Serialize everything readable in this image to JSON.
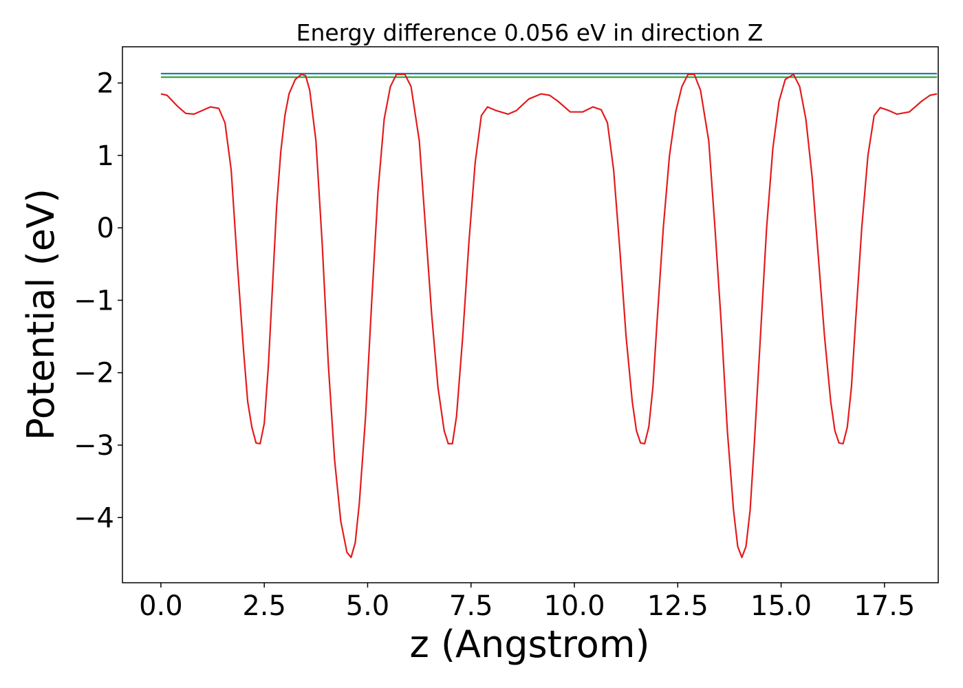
{
  "chart_data": {
    "type": "line",
    "title": "Energy difference 0.056 eV in direction Z",
    "xlabel": "z (Angstrom)",
    "ylabel": "Potential (eV)",
    "xlim": [
      -0.93,
      18.8
    ],
    "ylim": [
      -4.9,
      2.5
    ],
    "xticks": [
      0.0,
      2.5,
      5.0,
      7.5,
      10.0,
      12.5,
      15.0,
      17.5
    ],
    "xtick_labels": [
      "0.0",
      "2.5",
      "5.0",
      "7.5",
      "10.0",
      "12.5",
      "15.0",
      "17.5"
    ],
    "yticks": [
      2,
      1,
      0,
      -1,
      -2,
      -3,
      -4
    ],
    "ytick_labels": [
      "2",
      "1",
      "0",
      "−1",
      "−2",
      "−3",
      "−4"
    ],
    "grid": false,
    "series": [
      {
        "color": "#1f77b4",
        "x": [
          0.0,
          18.77
        ],
        "y": [
          2.13,
          2.13
        ]
      },
      {
        "color": "#2ca02c",
        "x": [
          0.0,
          18.77
        ],
        "y": [
          2.08,
          2.08
        ]
      },
      {
        "color": "#e31a1c",
        "x": [
          0.0,
          0.15,
          0.4,
          0.6,
          0.8,
          1.0,
          1.2,
          1.4,
          1.55,
          1.7,
          1.85,
          2.0,
          2.1,
          2.2,
          2.3,
          2.4,
          2.5,
          2.6,
          2.7,
          2.8,
          2.9,
          3.0,
          3.1,
          3.25,
          3.4,
          3.5,
          3.6,
          3.75,
          3.9,
          4.05,
          4.2,
          4.35,
          4.5,
          4.6,
          4.7,
          4.8,
          4.95,
          5.1,
          5.25,
          5.4,
          5.55,
          5.7,
          5.9,
          6.05,
          6.25,
          6.4,
          6.55,
          6.7,
          6.85,
          6.95,
          7.05,
          7.15,
          7.3,
          7.45,
          7.6,
          7.75,
          7.9,
          8.1,
          8.4,
          8.6,
          8.9,
          9.2,
          9.4,
          9.6,
          9.9,
          10.2,
          10.45,
          10.65,
          10.8,
          10.95,
          11.1,
          11.25,
          11.4,
          11.5,
          11.6,
          11.7,
          11.8,
          11.9,
          12.0,
          12.15,
          12.3,
          12.45,
          12.6,
          12.75,
          12.9,
          13.05,
          13.25,
          13.4,
          13.55,
          13.7,
          13.85,
          13.95,
          14.05,
          14.15,
          14.25,
          14.35,
          14.5,
          14.65,
          14.8,
          14.95,
          15.1,
          15.3,
          15.45,
          15.6,
          15.75,
          15.9,
          16.05,
          16.2,
          16.3,
          16.4,
          16.5,
          16.6,
          16.7,
          16.8,
          16.95,
          17.1,
          17.25,
          17.4,
          17.6,
          17.8,
          18.1,
          18.4,
          18.6,
          18.77
        ],
        "y": [
          1.85,
          1.83,
          1.68,
          1.58,
          1.57,
          1.62,
          1.67,
          1.65,
          1.45,
          0.8,
          -0.5,
          -1.7,
          -2.4,
          -2.75,
          -2.97,
          -2.98,
          -2.7,
          -1.9,
          -0.8,
          0.3,
          1.05,
          1.55,
          1.85,
          2.05,
          2.12,
          2.1,
          1.9,
          1.2,
          -0.2,
          -1.9,
          -3.2,
          -4.05,
          -4.48,
          -4.55,
          -4.35,
          -3.8,
          -2.6,
          -1.0,
          0.5,
          1.5,
          1.95,
          2.12,
          2.12,
          1.95,
          1.2,
          0.0,
          -1.2,
          -2.2,
          -2.8,
          -2.98,
          -2.98,
          -2.6,
          -1.5,
          -0.2,
          0.9,
          1.55,
          1.67,
          1.62,
          1.57,
          1.62,
          1.78,
          1.85,
          1.83,
          1.75,
          1.6,
          1.6,
          1.67,
          1.63,
          1.45,
          0.8,
          -0.3,
          -1.5,
          -2.4,
          -2.8,
          -2.97,
          -2.98,
          -2.75,
          -2.2,
          -1.3,
          0.0,
          1.0,
          1.6,
          1.95,
          2.12,
          2.12,
          1.9,
          1.2,
          0.0,
          -1.3,
          -2.8,
          -3.9,
          -4.4,
          -4.55,
          -4.4,
          -3.9,
          -3.0,
          -1.5,
          0.0,
          1.1,
          1.75,
          2.05,
          2.12,
          1.95,
          1.5,
          0.7,
          -0.4,
          -1.5,
          -2.4,
          -2.8,
          -2.97,
          -2.98,
          -2.75,
          -2.2,
          -1.3,
          0.0,
          1.0,
          1.55,
          1.66,
          1.62,
          1.57,
          1.6,
          1.75,
          1.83,
          1.85
        ]
      }
    ]
  }
}
